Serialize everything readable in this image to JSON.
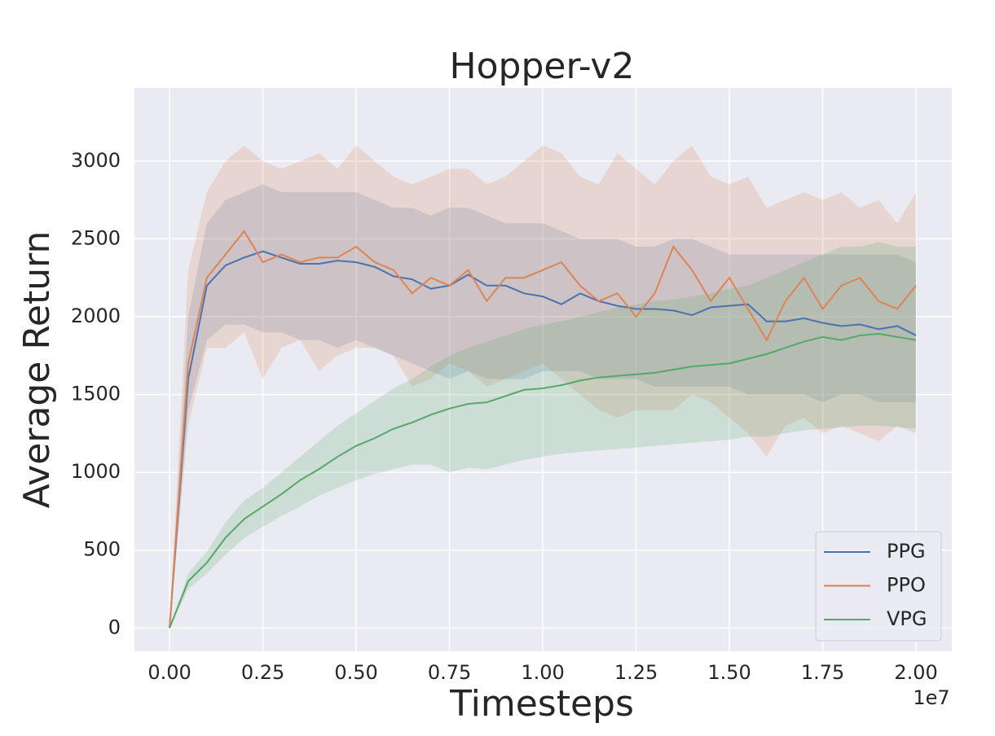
{
  "chart_data": {
    "type": "line",
    "title": "Hopper-v2",
    "xlabel": "Timesteps",
    "ylabel": "Average Return",
    "x_offset_label": "1e7",
    "x": [
      0,
      0.05,
      0.1,
      0.15,
      0.2,
      0.25,
      0.3,
      0.35,
      0.4,
      0.45,
      0.5,
      0.55,
      0.6,
      0.65,
      0.7,
      0.75,
      0.8,
      0.85,
      0.9,
      0.95,
      1.0,
      1.05,
      1.1,
      1.15,
      1.2,
      1.25,
      1.3,
      1.35,
      1.4,
      1.45,
      1.5,
      1.55,
      1.6,
      1.65,
      1.7,
      1.75,
      1.8,
      1.85,
      1.9,
      1.95,
      2.0
    ],
    "series": [
      {
        "name": "PPG",
        "color": "#4c72b0",
        "values": [
          0,
          1600,
          2200,
          2330,
          2380,
          2420,
          2380,
          2340,
          2340,
          2360,
          2350,
          2320,
          2260,
          2240,
          2180,
          2200,
          2270,
          2200,
          2200,
          2150,
          2130,
          2080,
          2150,
          2100,
          2070,
          2050,
          2050,
          2040,
          2010,
          2060,
          2070,
          2080,
          1970,
          1970,
          1990,
          1960,
          1940,
          1950,
          1920,
          1940,
          1880
        ],
        "lower": [
          0,
          1400,
          1850,
          1950,
          1950,
          1900,
          1900,
          1850,
          1850,
          1800,
          1850,
          1800,
          1750,
          1700,
          1650,
          1600,
          1650,
          1600,
          1600,
          1600,
          1650,
          1650,
          1650,
          1600,
          1600,
          1600,
          1550,
          1550,
          1550,
          1550,
          1550,
          1500,
          1500,
          1500,
          1500,
          1450,
          1500,
          1500,
          1450,
          1450,
          1450
        ],
        "upper": [
          0,
          2000,
          2600,
          2750,
          2800,
          2850,
          2800,
          2800,
          2800,
          2800,
          2800,
          2750,
          2700,
          2700,
          2650,
          2700,
          2700,
          2650,
          2600,
          2600,
          2600,
          2550,
          2500,
          2500,
          2500,
          2450,
          2450,
          2500,
          2500,
          2450,
          2400,
          2400,
          2400,
          2400,
          2400,
          2400,
          2400,
          2400,
          2400,
          2400,
          2350
        ]
      },
      {
        "name": "PPO",
        "color": "#dd8452",
        "values": [
          0,
          1700,
          2250,
          2400,
          2550,
          2350,
          2400,
          2350,
          2380,
          2380,
          2450,
          2350,
          2300,
          2150,
          2250,
          2200,
          2300,
          2100,
          2250,
          2250,
          2300,
          2350,
          2200,
          2100,
          2150,
          2000,
          2150,
          2450,
          2300,
          2100,
          2250,
          2050,
          1850,
          2100,
          2250,
          2050,
          2200,
          2250,
          2100,
          2050,
          2200
        ],
        "lower": [
          0,
          1300,
          1800,
          1800,
          1900,
          1600,
          1800,
          1850,
          1650,
          1750,
          1800,
          1800,
          1750,
          1550,
          1600,
          1700,
          1650,
          1550,
          1600,
          1650,
          1700,
          1600,
          1500,
          1400,
          1350,
          1400,
          1400,
          1400,
          1500,
          1450,
          1350,
          1250,
          1100,
          1300,
          1350,
          1250,
          1300,
          1250,
          1200,
          1300,
          1250
        ],
        "upper": [
          0,
          2300,
          2800,
          3000,
          3100,
          3000,
          2950,
          3000,
          3050,
          2950,
          3100,
          3000,
          2900,
          2850,
          2900,
          2950,
          2950,
          2850,
          2900,
          3000,
          3100,
          3050,
          2900,
          2850,
          3050,
          2950,
          2850,
          3000,
          3100,
          2900,
          2850,
          2900,
          2700,
          2750,
          2800,
          2750,
          2800,
          2700,
          2750,
          2600,
          2800
        ]
      },
      {
        "name": "VPG",
        "color": "#55a868",
        "values": [
          0,
          300,
          420,
          580,
          700,
          780,
          860,
          950,
          1020,
          1100,
          1170,
          1220,
          1280,
          1320,
          1370,
          1410,
          1440,
          1450,
          1490,
          1530,
          1540,
          1560,
          1590,
          1610,
          1620,
          1630,
          1640,
          1660,
          1680,
          1690,
          1700,
          1730,
          1760,
          1800,
          1840,
          1870,
          1850,
          1880,
          1890,
          1870,
          1850
        ],
        "lower": [
          0,
          250,
          350,
          470,
          580,
          650,
          720,
          780,
          850,
          900,
          950,
          990,
          1020,
          1050,
          1050,
          1000,
          1030,
          1020,
          1050,
          1080,
          1100,
          1120,
          1130,
          1140,
          1150,
          1160,
          1170,
          1180,
          1190,
          1200,
          1210,
          1230,
          1230,
          1250,
          1270,
          1280,
          1290,
          1300,
          1300,
          1290,
          1280
        ],
        "upper": [
          0,
          350,
          490,
          680,
          820,
          900,
          1000,
          1100,
          1200,
          1300,
          1380,
          1460,
          1540,
          1600,
          1680,
          1750,
          1800,
          1840,
          1880,
          1920,
          1950,
          1970,
          2000,
          2030,
          2060,
          2080,
          2100,
          2110,
          2130,
          2150,
          2180,
          2200,
          2250,
          2300,
          2350,
          2400,
          2450,
          2450,
          2480,
          2450,
          2450
        ]
      }
    ],
    "xlim": [
      -0.094,
      2.096
    ],
    "ylim": [
      -150,
      3470
    ],
    "xticks": [
      {
        "value": 0,
        "label": "0.00"
      },
      {
        "value": 0.25,
        "label": "0.25"
      },
      {
        "value": 0.5,
        "label": "0.50"
      },
      {
        "value": 0.75,
        "label": "0.75"
      },
      {
        "value": 1.0,
        "label": "1.00"
      },
      {
        "value": 1.25,
        "label": "1.25"
      },
      {
        "value": 1.5,
        "label": "1.50"
      },
      {
        "value": 1.75,
        "label": "1.75"
      },
      {
        "value": 2.0,
        "label": "2.00"
      }
    ],
    "yticks": [
      0,
      500,
      1000,
      1500,
      2000,
      2500,
      3000
    ],
    "grid": true,
    "legend": "lower right"
  }
}
